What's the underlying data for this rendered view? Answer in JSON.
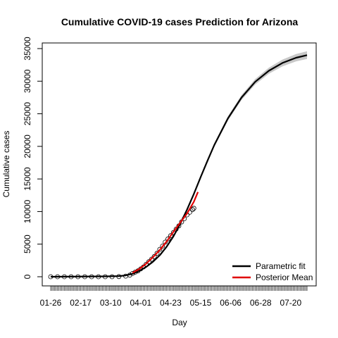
{
  "chart_data": {
    "type": "line",
    "title": "Cumulative COVID-19 cases Prediction for Arizona",
    "xlabel": "Day",
    "ylabel": "Cumulative cases",
    "x_tick_labels": [
      "01-26",
      "02-17",
      "03-10",
      "04-01",
      "04-23",
      "05-15",
      "06-06",
      "06-28",
      "07-20"
    ],
    "x_tick_days": [
      0,
      22,
      44,
      66,
      88,
      110,
      132,
      154,
      176
    ],
    "ylim": [
      0,
      35000
    ],
    "y_ticks": [
      0,
      5000,
      10000,
      15000,
      20000,
      25000,
      30000,
      35000
    ],
    "x_range_days": [
      0,
      188
    ],
    "observed_range_days": [
      0,
      105
    ],
    "legend": {
      "position": "bottom-right",
      "entries": [
        "Parametric fit",
        "Posterior Mean"
      ]
    },
    "colors": {
      "parametric_fit": "#000000",
      "posterior_mean": "#e00000",
      "observed": "#000000",
      "band": "#c8c8c8"
    },
    "series": [
      {
        "name": "Parametric fit",
        "x": [
          0,
          40,
          50,
          55,
          60,
          65,
          70,
          75,
          80,
          85,
          90,
          95,
          100,
          105,
          110,
          115,
          120,
          130,
          140,
          150,
          160,
          170,
          180,
          188
        ],
        "y": [
          0,
          50,
          100,
          200,
          450,
          900,
          1500,
          2300,
          3300,
          4600,
          6200,
          8100,
          10300,
          12700,
          15300,
          17800,
          20200,
          24300,
          27500,
          29900,
          31600,
          32800,
          33600,
          34000
        ]
      },
      {
        "name": "Posterior Mean",
        "x": [
          60,
          65,
          70,
          75,
          80,
          85,
          90,
          95,
          100,
          105,
          108
        ],
        "y": [
          600,
          1200,
          2000,
          3000,
          4100,
          5400,
          6900,
          8300,
          9700,
          11500,
          13000
        ]
      },
      {
        "name": "Observed",
        "x": [
          0,
          5,
          10,
          15,
          20,
          25,
          30,
          35,
          40,
          45,
          50,
          55,
          58,
          60,
          62,
          64,
          66,
          68,
          70,
          72,
          74,
          76,
          78,
          80,
          82,
          84,
          86,
          88,
          90,
          92,
          94,
          96,
          98,
          100,
          102,
          104,
          105
        ],
        "y": [
          0,
          0,
          0,
          0,
          1,
          1,
          1,
          2,
          2,
          5,
          20,
          100,
          250,
          500,
          700,
          900,
          1200,
          1500,
          1900,
          2300,
          2700,
          3100,
          3600,
          4200,
          4700,
          5300,
          5800,
          6300,
          6800,
          7300,
          7800,
          8400,
          8900,
          9500,
          9900,
          10300,
          10500
        ]
      }
    ],
    "band_halfwidth": [
      0,
      20,
      30,
      50,
      60,
      70,
      80,
      90,
      100,
      120,
      140,
      160,
      180,
      200,
      220,
      250,
      280,
      330,
      380,
      420,
      470,
      520,
      560,
      600
    ]
  }
}
